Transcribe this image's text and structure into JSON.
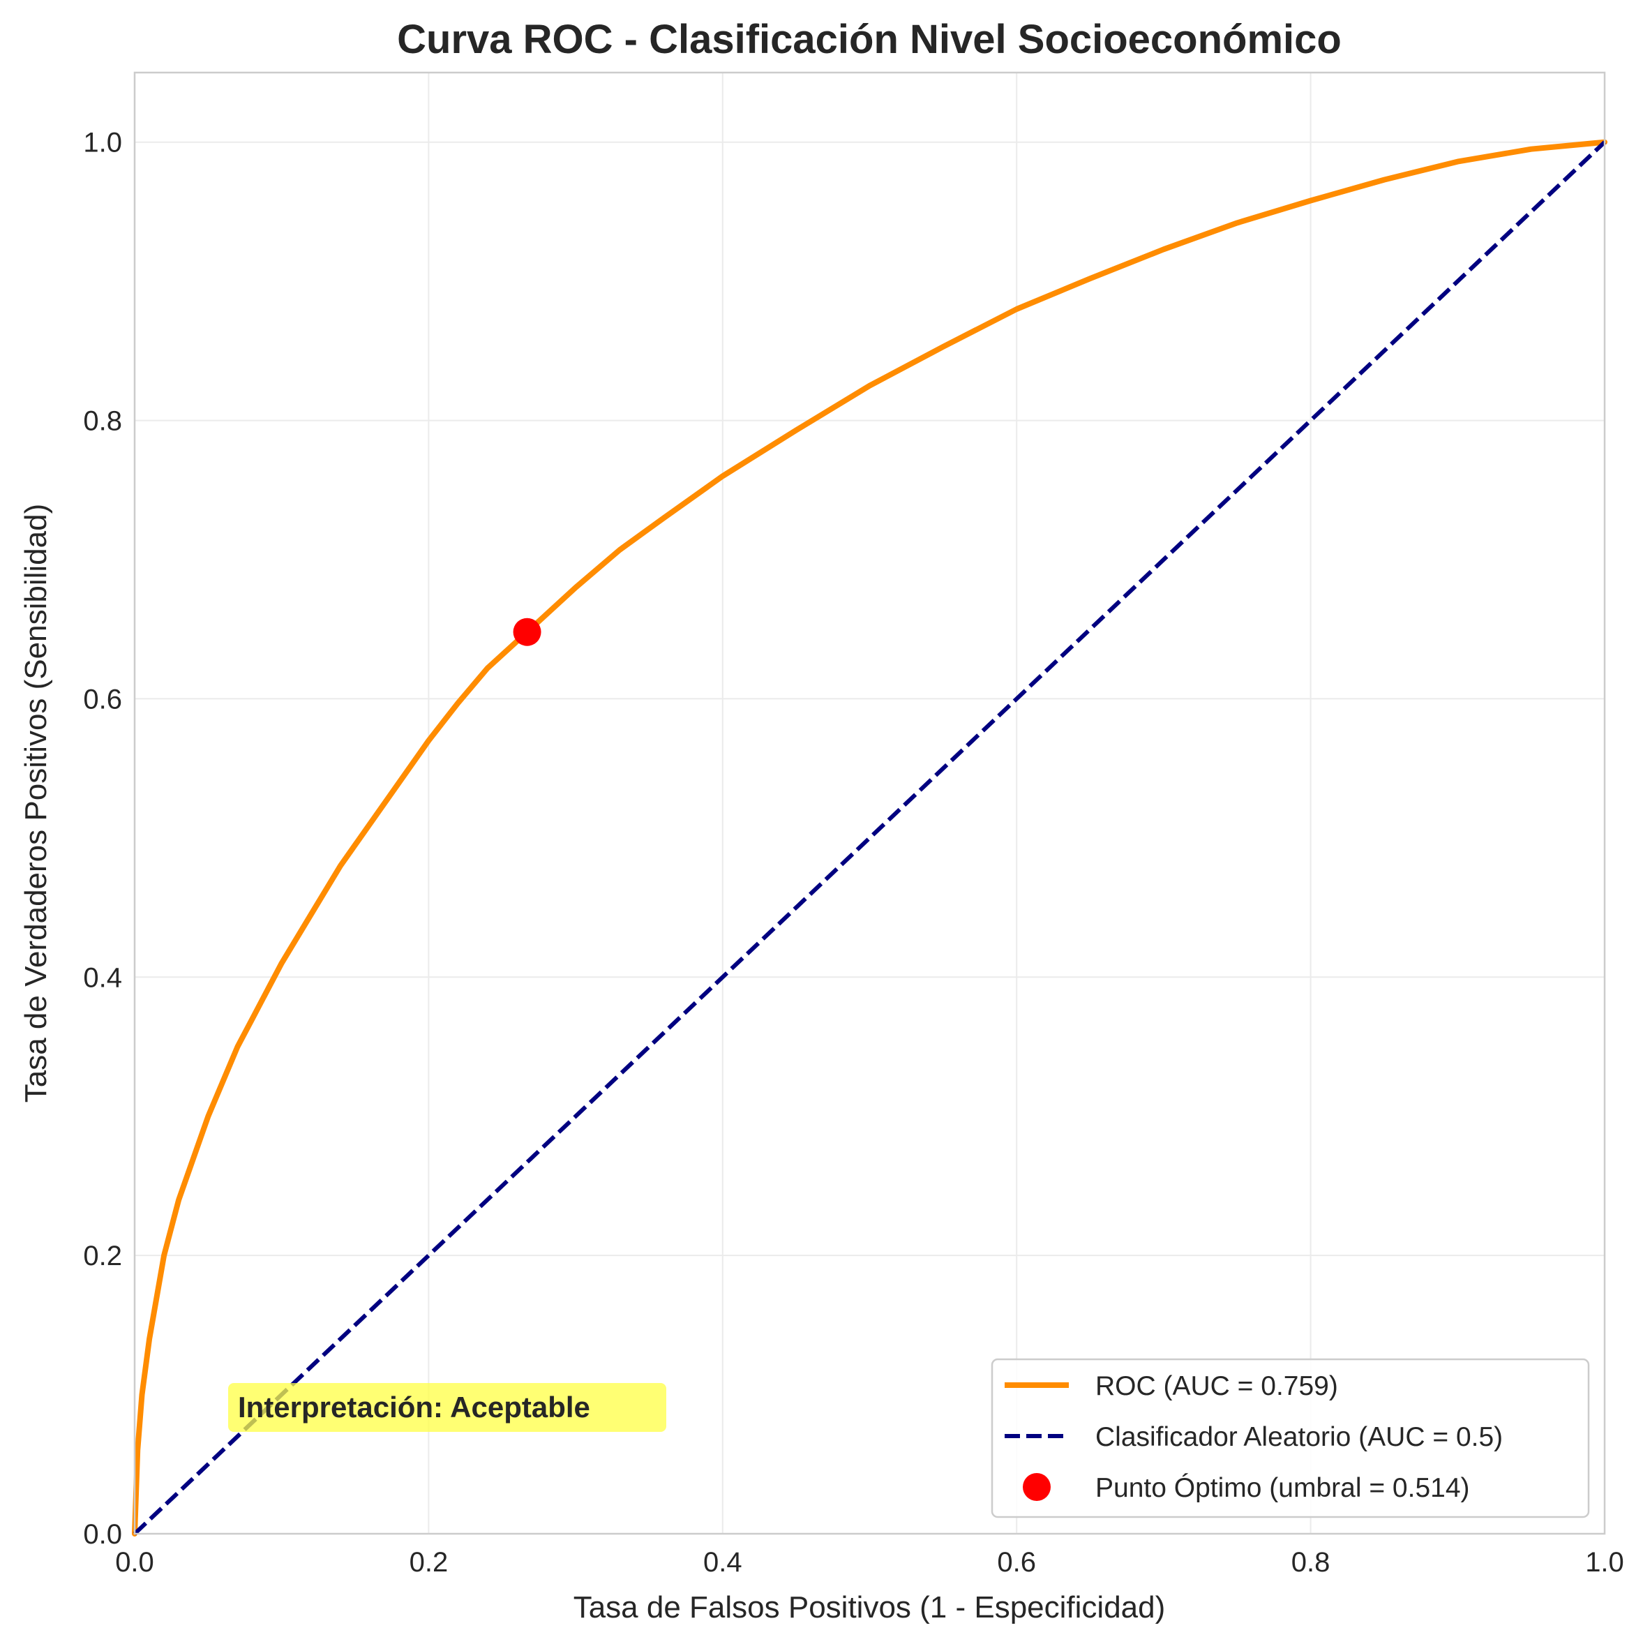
{
  "chart_data": {
    "type": "line",
    "title": "Curva ROC - Clasificación Nivel Socioeconómico",
    "xlabel": "Tasa de Falsos Positivos (1 - Especificidad)",
    "ylabel": "Tasa de Verdaderos Positivos (Sensibilidad)",
    "xlim": [
      0.0,
      1.0
    ],
    "ylim": [
      0.0,
      1.05
    ],
    "x_ticks": [
      "0.0",
      "0.2",
      "0.4",
      "0.6",
      "0.8",
      "1.0"
    ],
    "y_ticks": [
      "0.0",
      "0.2",
      "0.4",
      "0.6",
      "0.8",
      "1.0"
    ],
    "grid": true,
    "legend_position": "lower-right",
    "series": [
      {
        "name": "ROC (AUC = 0.759)",
        "color": "#ff8c00",
        "style": "solid",
        "x": [
          0.0,
          0.002,
          0.005,
          0.01,
          0.015,
          0.02,
          0.03,
          0.04,
          0.05,
          0.06,
          0.07,
          0.08,
          0.09,
          0.1,
          0.12,
          0.14,
          0.16,
          0.18,
          0.2,
          0.22,
          0.24,
          0.267,
          0.3,
          0.33,
          0.36,
          0.4,
          0.45,
          0.5,
          0.55,
          0.6,
          0.65,
          0.7,
          0.75,
          0.8,
          0.85,
          0.9,
          0.95,
          1.0
        ],
        "y": [
          0.0,
          0.06,
          0.1,
          0.14,
          0.17,
          0.2,
          0.24,
          0.27,
          0.3,
          0.325,
          0.35,
          0.37,
          0.39,
          0.41,
          0.445,
          0.48,
          0.51,
          0.54,
          0.57,
          0.597,
          0.622,
          0.648,
          0.68,
          0.707,
          0.73,
          0.76,
          0.793,
          0.825,
          0.853,
          0.88,
          0.902,
          0.923,
          0.942,
          0.958,
          0.973,
          0.986,
          0.995,
          1.0
        ]
      },
      {
        "name": "Clasificador Aleatorio (AUC = 0.5)",
        "color": "#000080",
        "style": "dashed",
        "x": [
          0.0,
          1.0
        ],
        "y": [
          0.0,
          1.0
        ]
      }
    ],
    "points": [
      {
        "name": "Punto Óptimo (umbral = 0.514)",
        "color": "#ff0000",
        "x": 0.267,
        "y": 0.648
      }
    ],
    "annotation": {
      "text": "Interpretación: Aceptable",
      "x": 0.065,
      "y": 0.095,
      "background": "#ffff44"
    }
  }
}
